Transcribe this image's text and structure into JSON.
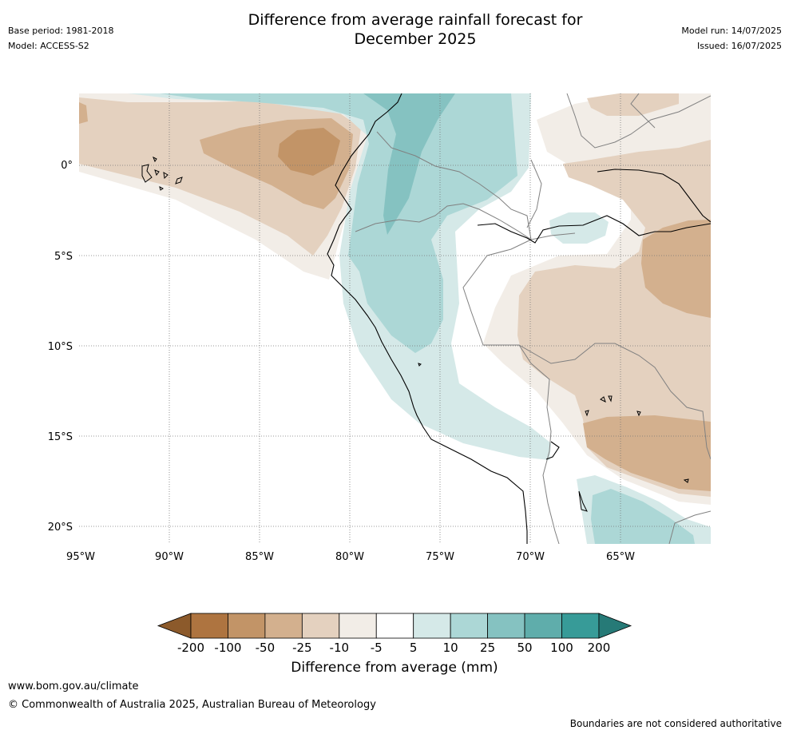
{
  "header": {
    "base_period": "Base period: 1981-2018",
    "model": "Model: ACCESS-S2",
    "title_line1": "Difference from average rainfall forecast for",
    "title_line2": "December 2025",
    "model_run": "Model run: 14/07/2025",
    "issued": "Issued: 16/07/2025"
  },
  "map": {
    "lat_labels": [
      "0°",
      "5°S",
      "10°S",
      "15°S",
      "20°S"
    ],
    "lon_labels": [
      "95°W",
      "90°W",
      "85°W",
      "80°W",
      "75°W",
      "70°W",
      "65°W"
    ]
  },
  "colorbar": {
    "label": "Difference from average (mm)",
    "ticks": [
      "-200",
      "-100",
      "-50",
      "-25",
      "-10",
      "-5",
      "5",
      "10",
      "25",
      "50",
      "100",
      "200"
    ],
    "colors": [
      "#8c5a2b",
      "#ae7440",
      "#c29467",
      "#d3b08e",
      "#e4d1bf",
      "#f2ede7",
      "#ffffff",
      "#d5e9e8",
      "#acd7d6",
      "#85c2c1",
      "#5fadab",
      "#379b98",
      "#267a77"
    ]
  },
  "footer": {
    "url": "www.bom.gov.au/climate",
    "copyright": "© Commonwealth of Australia 2025, Australian Bureau of Meteorology",
    "disclaimer": "Boundaries are not considered authoritative"
  }
}
